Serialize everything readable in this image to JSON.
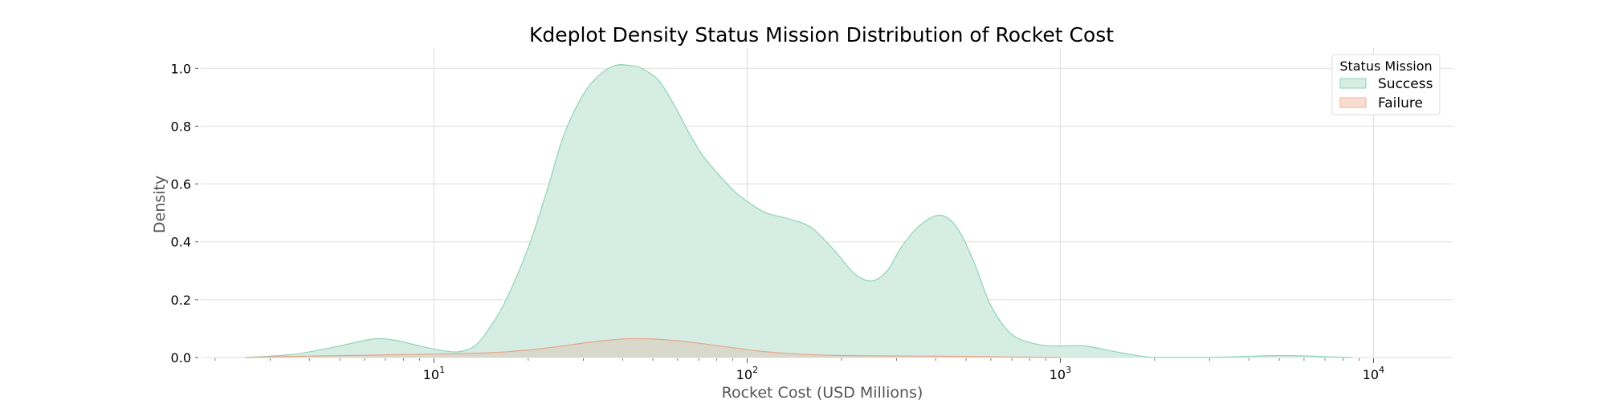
{
  "chart_data": {
    "type": "area",
    "title": "Kdeplot Density Status Mission Distribution of Rocket Cost",
    "xlabel": "Rocket Cost (USD Millions)",
    "ylabel": "Density",
    "xscale": "log",
    "xlim": [
      1.8,
      18000
    ],
    "ylim": [
      0,
      1.07
    ],
    "grid": true,
    "legend": {
      "title": "Status Mission",
      "position": "top-right"
    },
    "x_ticks": [
      {
        "value": 10,
        "base": "10",
        "exp": "1"
      },
      {
        "value": 100,
        "base": "10",
        "exp": "2"
      },
      {
        "value": 1000,
        "base": "10",
        "exp": "3"
      },
      {
        "value": 10000,
        "base": "10",
        "exp": "4"
      }
    ],
    "y_ticks": [
      "0.0",
      "0.2",
      "0.4",
      "0.6",
      "0.8",
      "1.0"
    ],
    "series": [
      {
        "name": "Success",
        "fill": "#d6ede4",
        "stroke": "#8fd3b9",
        "x": [
          2.5,
          3.5,
          4.5,
          5.5,
          6.5,
          7.5,
          9,
          10.5,
          12,
          13.5,
          15,
          17,
          20,
          23,
          26,
          30,
          34,
          38,
          42,
          46,
          52,
          58,
          65,
          72,
          80,
          90,
          100,
          115,
          135,
          160,
          190,
          220,
          250,
          280,
          310,
          350,
          400,
          440,
          480,
          530,
          600,
          700,
          850,
          1000,
          1200,
          1500,
          2000,
          3000,
          5000,
          7000,
          8500
        ],
        "values": [
          0.0,
          0.01,
          0.03,
          0.05,
          0.065,
          0.06,
          0.04,
          0.025,
          0.02,
          0.04,
          0.1,
          0.2,
          0.38,
          0.58,
          0.77,
          0.91,
          0.98,
          1.01,
          1.01,
          1.0,
          0.96,
          0.88,
          0.78,
          0.7,
          0.64,
          0.58,
          0.54,
          0.5,
          0.48,
          0.45,
          0.37,
          0.29,
          0.265,
          0.3,
          0.38,
          0.45,
          0.49,
          0.48,
          0.43,
          0.33,
          0.18,
          0.08,
          0.045,
          0.04,
          0.04,
          0.02,
          0.0,
          0.0,
          0.007,
          0.003,
          0.0
        ]
      },
      {
        "name": "Failure",
        "fill": "#d9d8c9",
        "stroke": "#e8a68a",
        "x": [
          2.5,
          4,
          6,
          8,
          10,
          13,
          16,
          20,
          25,
          30,
          36,
          42,
          50,
          60,
          72,
          90,
          110,
          140,
          180,
          250,
          350,
          500,
          700,
          1000
        ],
        "values": [
          0.0,
          0.005,
          0.008,
          0.01,
          0.012,
          0.014,
          0.018,
          0.026,
          0.038,
          0.05,
          0.06,
          0.065,
          0.064,
          0.058,
          0.048,
          0.034,
          0.022,
          0.013,
          0.008,
          0.006,
          0.005,
          0.004,
          0.002,
          0.0
        ]
      }
    ]
  },
  "legend_swatches": [
    {
      "name": "Success",
      "fill": "#d6ede4",
      "stroke": "#8fd3b9"
    },
    {
      "name": "Failure",
      "fill": "#f8ddd1",
      "stroke": "#f0b39b"
    }
  ]
}
